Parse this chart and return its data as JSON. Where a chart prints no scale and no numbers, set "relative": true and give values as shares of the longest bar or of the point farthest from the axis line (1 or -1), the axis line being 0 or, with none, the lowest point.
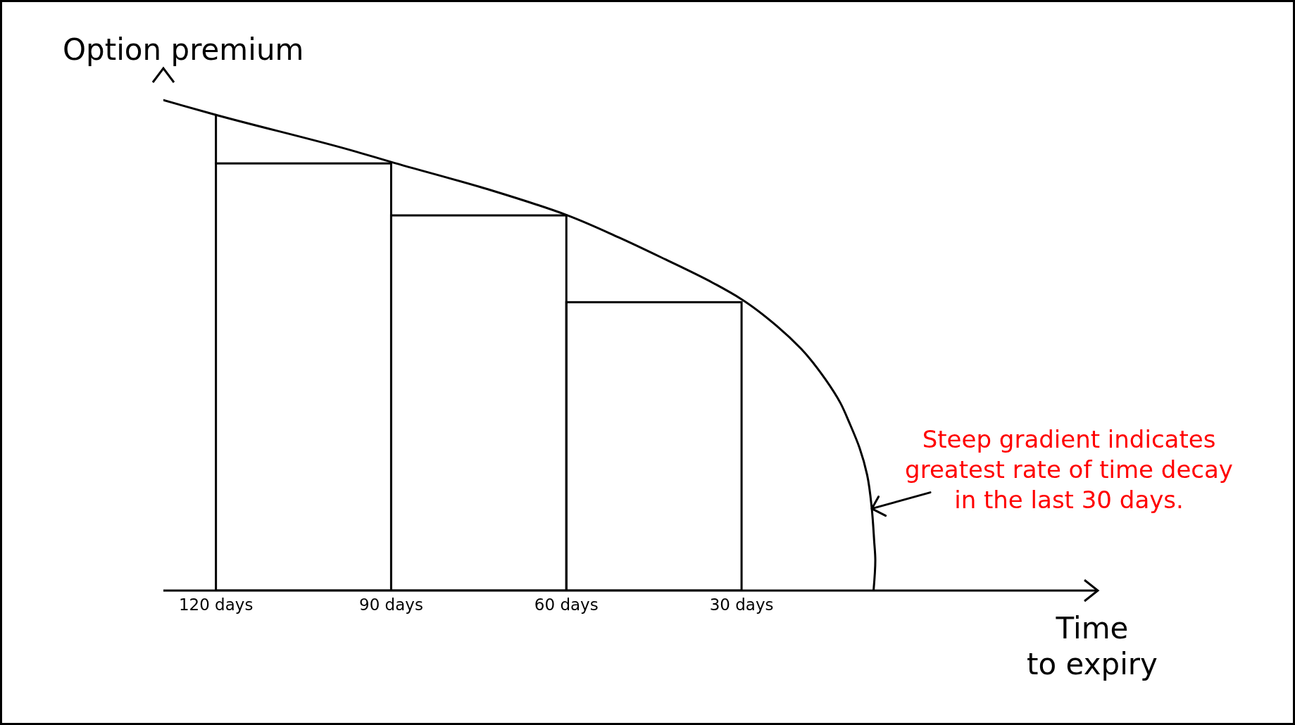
{
  "chart_data": {
    "type": "histogram",
    "relative": true,
    "ylabel": "Option premium",
    "xlabel": "Time\nto expiry",
    "xlim": [
      129,
      -31
    ],
    "xticks": [
      {
        "value": 120,
        "label": "120 days"
      },
      {
        "value": 90,
        "label": "90 days"
      },
      {
        "value": 60,
        "label": "60 days"
      },
      {
        "value": 30,
        "label": "30 days"
      }
    ],
    "series": [
      {
        "color": "#000000",
        "bins": [
          120,
          90,
          60,
          30
        ],
        "values": [
          0.871,
          0.765,
          0.588
        ]
      },
      {
        "type": "line",
        "color": "#000000",
        "x": [
          129,
          120,
          96.9,
          90,
          72.8,
          60,
          51.0,
          43.0,
          35.0,
          30,
          24.0,
          19.8,
          15.6,
          13.1,
          11.5,
          9.8,
          8.5,
          7.7,
          7.3,
          7.1,
          7.4
        ],
        "values": [
          1.0,
          0.97,
          0.898,
          0.874,
          0.816,
          0.766,
          0.72,
          0.675,
          0.628,
          0.594,
          0.54,
          0.493,
          0.43,
          0.383,
          0.341,
          0.291,
          0.236,
          0.167,
          0.102,
          0.062,
          0.0
        ]
      },
      {
        "type": "line",
        "color": "#000000",
        "x": [
          120,
          120
        ],
        "values": [
          0.871,
          0.97
        ]
      }
    ],
    "annotations": [
      {
        "text": "Steep gradient indicates\ngreatest rate of time decay\nin the last 30 days.",
        "x": 7.7,
        "y": 0.167
      }
    ]
  }
}
